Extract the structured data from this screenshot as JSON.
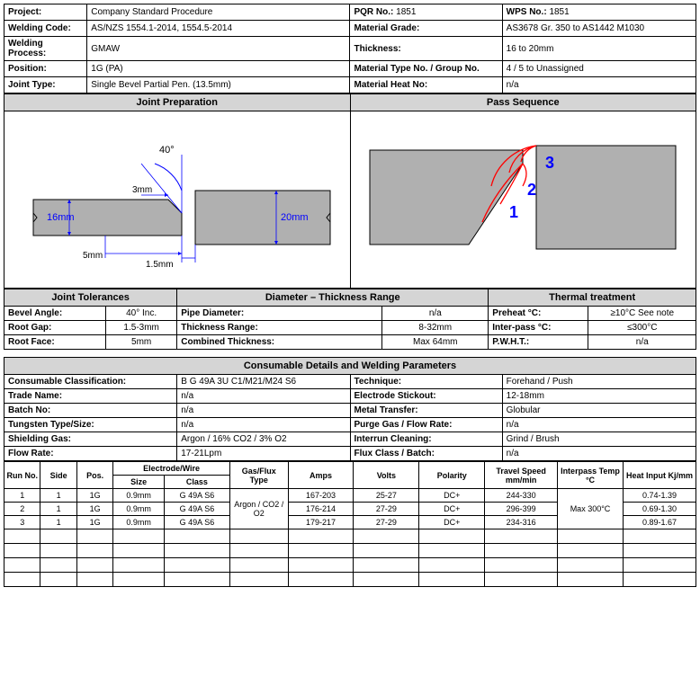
{
  "header": {
    "project_label": "Project:",
    "project_value": "Company Standard Procedure",
    "pqr_label": "PQR No.:",
    "pqr_value": "1851",
    "wps_label": "WPS No.:",
    "wps_value": "1851",
    "welding_code_label": "Welding Code:",
    "welding_code_value": "AS/NZS 1554.1-2014, 1554.5-2014",
    "material_grade_label": "Material Grade:",
    "material_grade_value": "AS3678 Gr. 350 to AS1442 M1030",
    "welding_process_label": "Welding Process:",
    "welding_process_value": "GMAW",
    "thickness_label": "Thickness:",
    "thickness_value": "16 to 20mm",
    "position_label": "Position:",
    "position_value": "1G (PA)",
    "material_type_label": "Material Type No. / Group No.",
    "material_type_value": "4 / 5 to Unassigned",
    "joint_type_label": "Joint Type:",
    "joint_type_value": "Single Bevel Partial Pen. (13.5mm)",
    "material_heat_label": "Material Heat No:",
    "material_heat_value": "n/a"
  },
  "sections": {
    "joint_prep": "Joint Preparation",
    "pass_seq": "Pass Sequence",
    "joint_tol": "Joint Tolerances",
    "diameter": "Diameter – Thickness Range",
    "thermal": "Thermal treatment",
    "consumable": "Consumable Details and Welding Parameters"
  },
  "joint_prep": {
    "angle": "40°",
    "gap": "3mm",
    "left_height": "16mm",
    "right_height": "20mm",
    "bottom_gap": "5mm",
    "face": "1.5mm"
  },
  "pass_seq": {
    "p1": "1",
    "p2": "2",
    "p3": "3"
  },
  "tolerances": {
    "bevel_label": "Bevel Angle:",
    "bevel_value": "40° Inc.",
    "root_gap_label": "Root Gap:",
    "root_gap_value": "1.5-3mm",
    "root_face_label": "Root Face:",
    "root_face_value": "5mm"
  },
  "diameter": {
    "pipe_label": "Pipe Diameter:",
    "pipe_value": "n/a",
    "thickness_label": "Thickness Range:",
    "thickness_value": "8-32mm",
    "combined_label": "Combined Thickness:",
    "combined_value": "Max 64mm"
  },
  "thermal": {
    "preheat_label": "Preheat °C:",
    "preheat_value": "≥10°C See note",
    "interpass_label": "Inter-pass °C:",
    "interpass_value": "≤300°C",
    "pwht_label": "P.W.H.T.:",
    "pwht_value": "n/a"
  },
  "consumable": {
    "class_label": "Consumable Classification:",
    "class_value": "B G 49A 3U C1/M21/M24 S6",
    "trade_label": "Trade Name:",
    "trade_value": "n/a",
    "batch_label": "Batch No:",
    "batch_value": "n/a",
    "tungsten_label": "Tungsten Type/Size:",
    "tungsten_value": "n/a",
    "shielding_label": "Shielding Gas:",
    "shielding_value": "Argon / 16% CO2 / 3% O2",
    "flow_label": "Flow Rate:",
    "flow_value": "17-21Lpm",
    "technique_label": "Technique:",
    "technique_value": "Forehand / Push",
    "stickout_label": "Electrode Stickout:",
    "stickout_value": "12-18mm",
    "transfer_label": "Metal Transfer:",
    "transfer_value": "Globular",
    "purge_label": "Purge Gas / Flow Rate:",
    "purge_value": "n/a",
    "interrun_label": "Interrun Cleaning:",
    "interrun_value": "Grind / Brush",
    "flux_label": "Flux Class / Batch:",
    "flux_value": "n/a"
  },
  "params": {
    "headers": {
      "run": "Run No.",
      "side": "Side",
      "pos": "Pos.",
      "electrode": "Electrode/Wire",
      "size": "Size",
      "class": "Class",
      "gas": "Gas/Flux Type",
      "amps": "Amps",
      "volts": "Volts",
      "polarity": "Polarity",
      "speed": "Travel Speed mm/min",
      "temp": "Interpass Temp °C",
      "heat": "Heat Input Kj/mm"
    },
    "gas_value": "Argon / CO2 / O2",
    "temp_value": "Max 300°C",
    "rows": [
      {
        "run": "1",
        "side": "1",
        "pos": "1G",
        "size": "0.9mm",
        "class": "G 49A S6",
        "amps": "167-203",
        "volts": "25-27",
        "polarity": "DC+",
        "speed": "244-330",
        "heat": "0.74-1.39"
      },
      {
        "run": "2",
        "side": "1",
        "pos": "1G",
        "size": "0.9mm",
        "class": "G 49A S6",
        "amps": "176-214",
        "volts": "27-29",
        "polarity": "DC+",
        "speed": "296-399",
        "heat": "0.69-1.30"
      },
      {
        "run": "3",
        "side": "1",
        "pos": "1G",
        "size": "0.9mm",
        "class": "G 49A S6",
        "amps": "179-217",
        "volts": "27-29",
        "polarity": "DC+",
        "speed": "234-316",
        "heat": "0.89-1.67"
      }
    ]
  },
  "colors": {
    "fill": "#b0b0b0",
    "dim": "#0000ff",
    "pass_red": "#ff0000",
    "pass_blue": "#0000ff"
  }
}
